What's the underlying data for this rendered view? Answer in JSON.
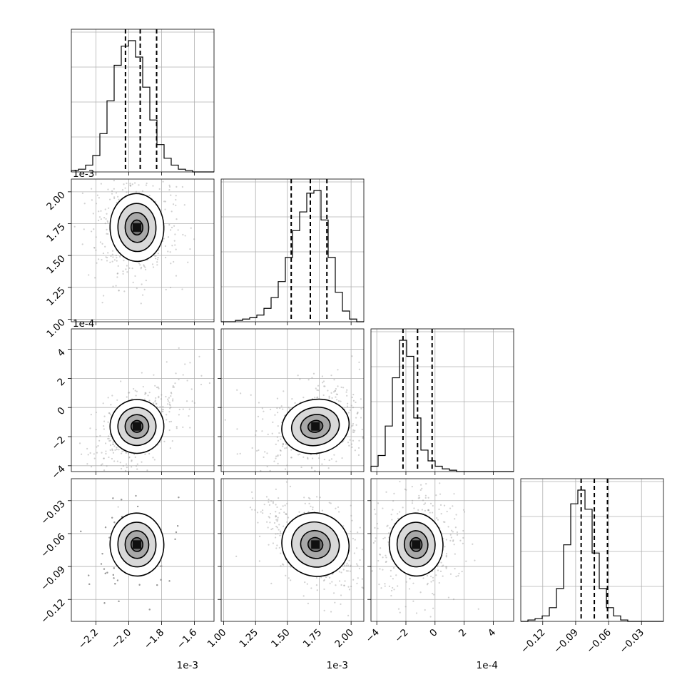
{
  "chart_data": {
    "type": "corner",
    "variables": [
      {
        "range": [
          -2.35,
          -1.48
        ],
        "ticks": [
          "-2.2",
          "-2.0",
          "-1.8",
          "-1.6"
        ],
        "tick_values": [
          -2.2,
          -2.0,
          -1.8,
          -1.6
        ],
        "offset_label": "1e-3"
      },
      {
        "range": [
          0.98,
          2.1
        ],
        "ticks": [
          "1.00",
          "1.25",
          "1.50",
          "1.75",
          "2.00"
        ],
        "tick_values": [
          1.0,
          1.25,
          1.5,
          1.75,
          2.0
        ],
        "offset_label": "1e-3"
      },
      {
        "range": [
          -4.4,
          5.4
        ],
        "ticks": [
          "-4",
          "-2",
          "0",
          "2",
          "4"
        ],
        "tick_values": [
          -4,
          -2,
          0,
          2,
          4
        ],
        "offset_label": "1e-4"
      },
      {
        "range": [
          -0.14,
          -0.01
        ],
        "ticks": [
          "-0.12",
          "-0.09",
          "-0.06",
          "-0.03"
        ],
        "tick_values": [
          -0.12,
          -0.09,
          -0.06,
          -0.03
        ],
        "offset_label": ""
      }
    ],
    "histograms": [
      {
        "quantiles": [
          -2.02,
          -1.93,
          -1.83
        ],
        "bins": [
          -2.35,
          -1.48
        ],
        "counts": [
          1,
          2,
          5,
          12,
          28,
          52,
          78,
          92,
          96,
          84,
          62,
          38,
          20,
          10,
          5,
          2,
          1,
          0,
          0,
          0
        ]
      },
      {
        "quantiles": [
          1.53,
          1.68,
          1.81
        ],
        "bins": [
          0.98,
          2.1
        ],
        "counts": [
          0,
          0,
          1,
          2,
          3,
          5,
          10,
          18,
          30,
          48,
          68,
          82,
          96,
          98,
          76,
          48,
          22,
          8,
          2,
          0
        ]
      },
      {
        "quantiles": [
          -2.2,
          -1.2,
          -0.2
        ],
        "bins": [
          -4.4,
          5.4
        ],
        "counts": [
          4,
          12,
          34,
          70,
          98,
          86,
          40,
          16,
          8,
          4,
          2,
          1,
          0,
          0,
          0,
          0,
          0,
          0,
          0,
          0
        ]
      },
      {
        "quantiles": [
          -0.085,
          -0.073,
          -0.061
        ],
        "bins": [
          -0.14,
          -0.01
        ],
        "counts": [
          0,
          1,
          2,
          4,
          10,
          24,
          56,
          86,
          96,
          82,
          50,
          24,
          10,
          4,
          1,
          0,
          0,
          0,
          0,
          0
        ]
      }
    ],
    "joint": [
      {
        "row": 1,
        "col": 0,
        "center": [
          -1.95,
          1.72
        ],
        "sd": [
          0.08,
          0.13
        ],
        "rho": 0.05
      },
      {
        "row": 2,
        "col": 0,
        "center": [
          -1.95,
          -1.3
        ],
        "sd": [
          0.08,
          0.9
        ],
        "rho": 0.55
      },
      {
        "row": 2,
        "col": 1,
        "center": [
          1.72,
          -1.3
        ],
        "sd": [
          0.13,
          0.9
        ],
        "rho": 0.3
      },
      {
        "row": 3,
        "col": 0,
        "center": [
          -1.95,
          -0.07
        ],
        "sd": [
          0.08,
          0.014
        ],
        "rho": 0.05
      },
      {
        "row": 3,
        "col": 1,
        "center": [
          1.72,
          -0.07
        ],
        "sd": [
          0.13,
          0.014
        ],
        "rho": -0.55
      },
      {
        "row": 3,
        "col": 2,
        "center": [
          -1.3,
          -0.07
        ],
        "sd": [
          0.9,
          0.014
        ],
        "rho": 0.1
      }
    ]
  }
}
